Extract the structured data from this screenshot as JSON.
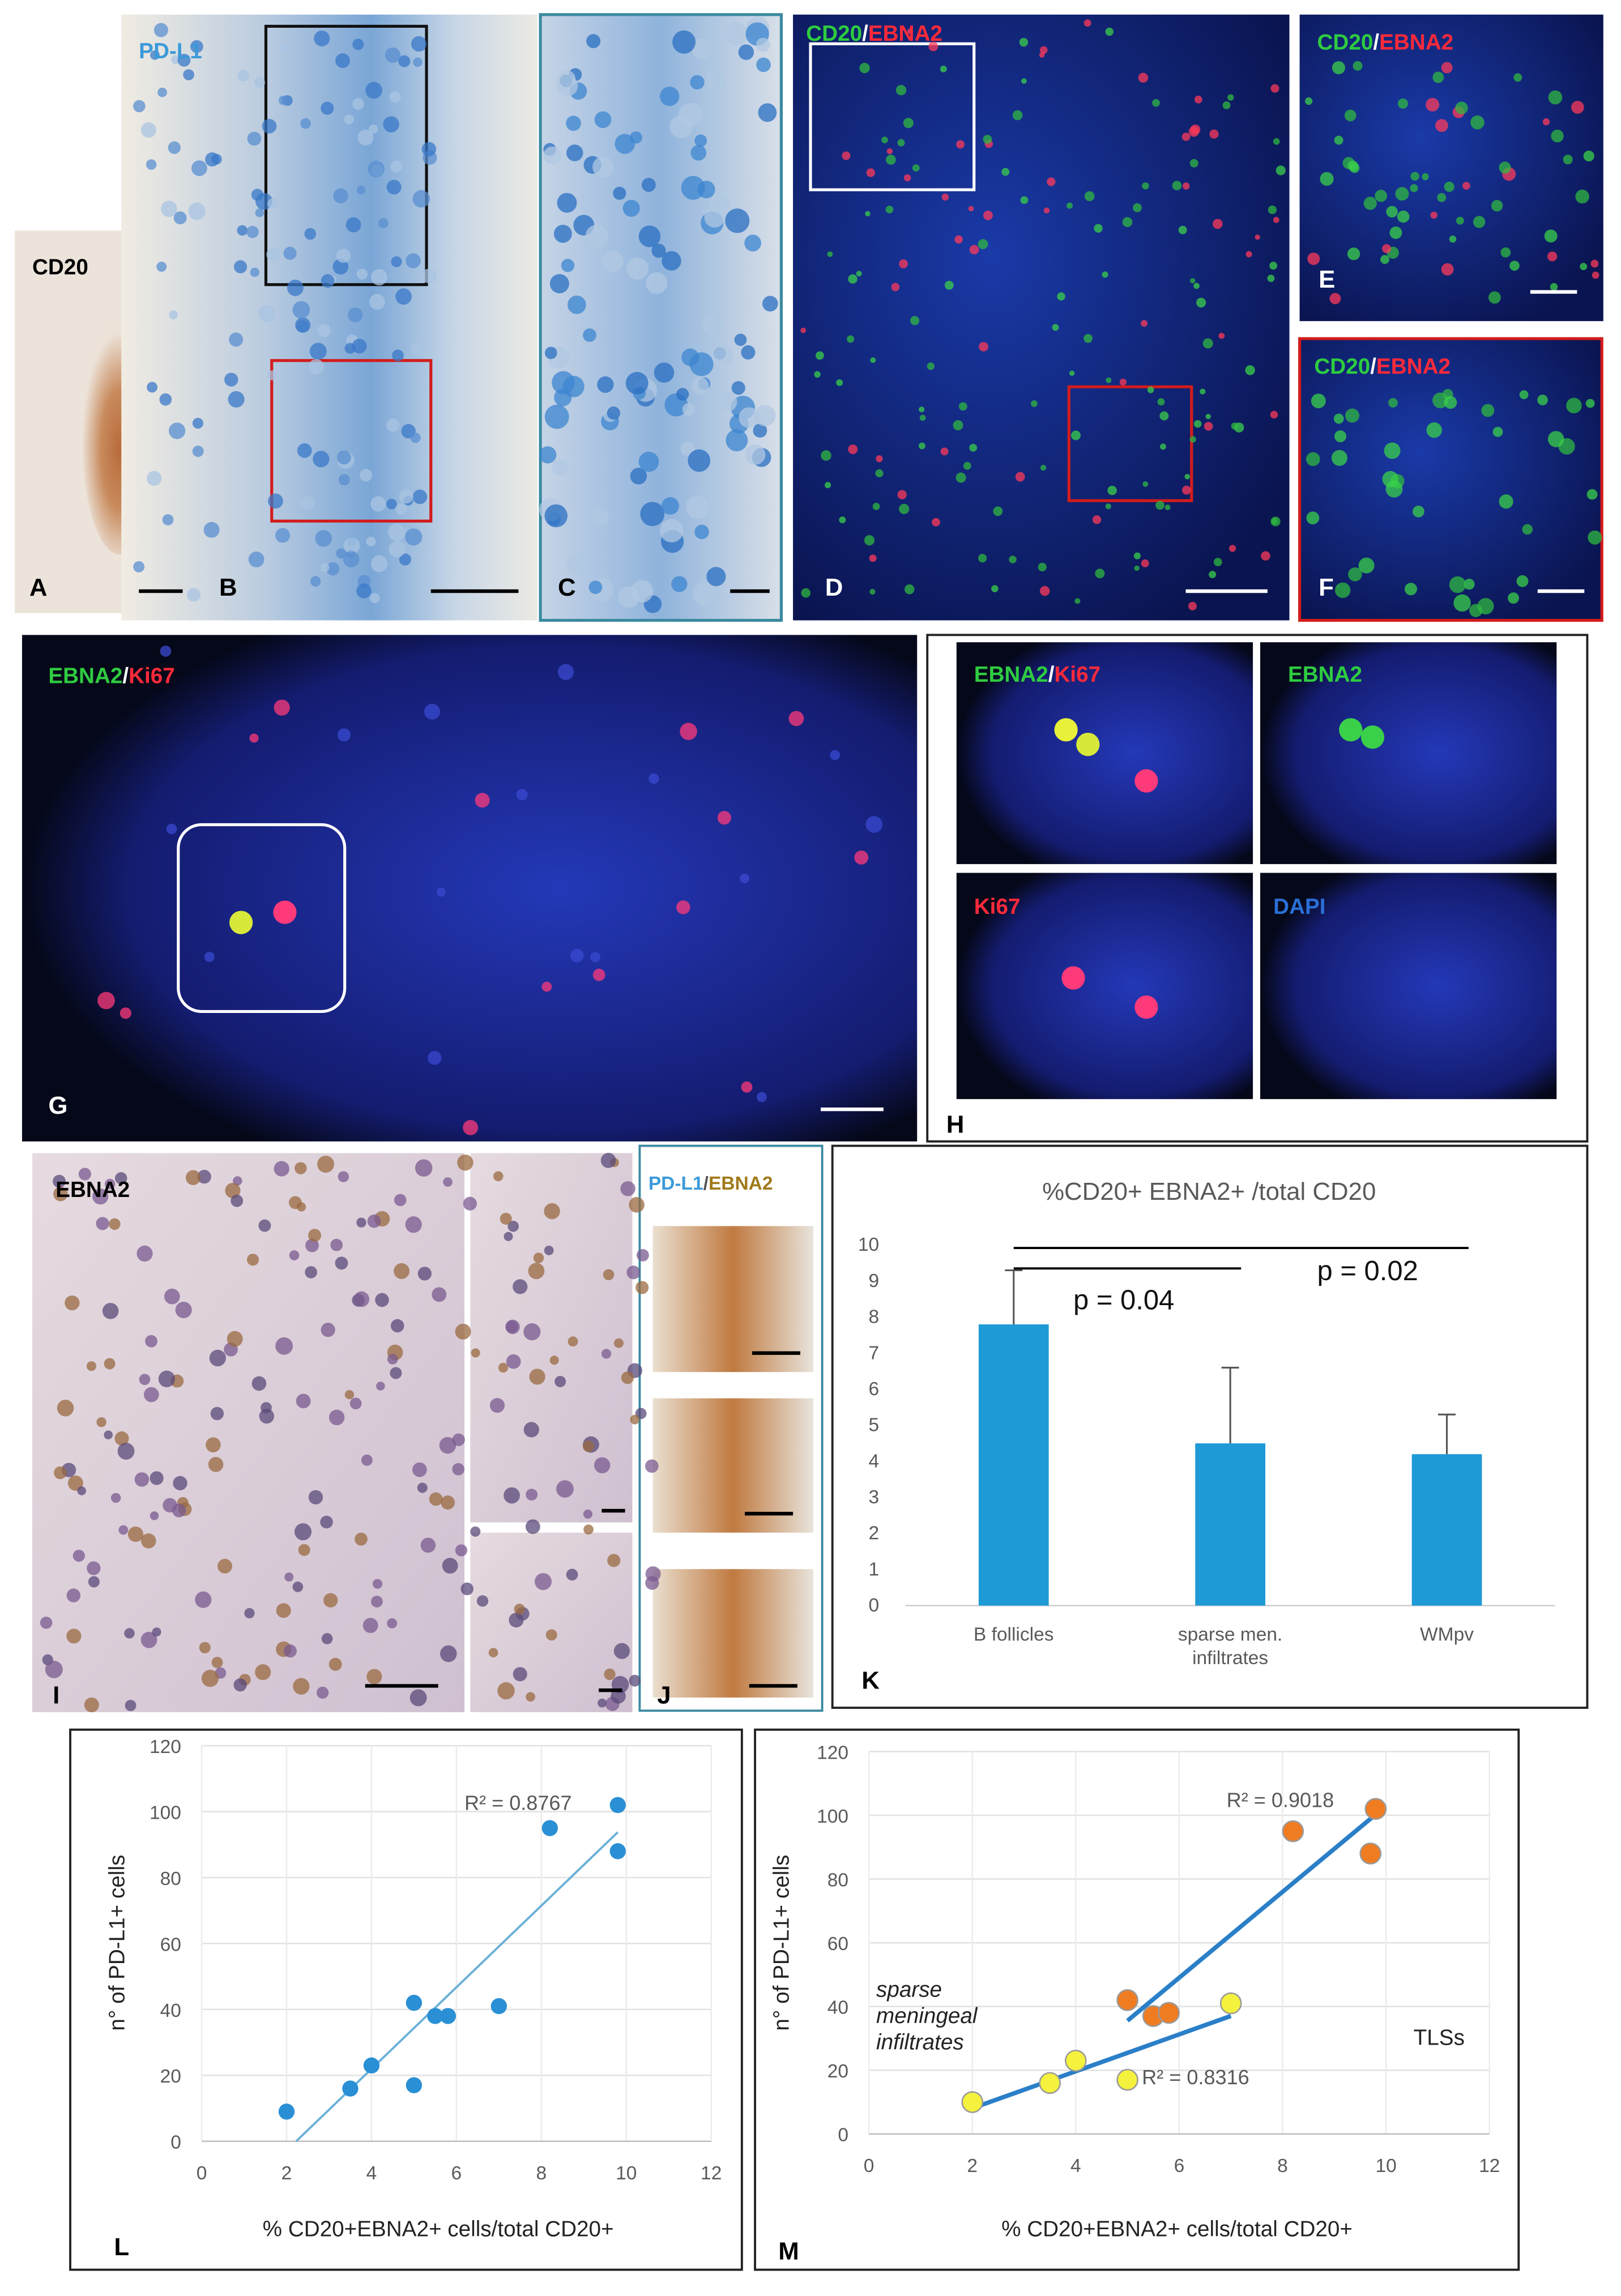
{
  "image_panels": [
    {
      "letter": "A",
      "stain": [
        "CD20"
      ]
    },
    {
      "letter": "B",
      "stain": [
        "PD-L1"
      ]
    },
    {
      "letter": "C"
    },
    {
      "letter": "D",
      "stain": [
        "CD20",
        "/",
        "EBNA2"
      ]
    },
    {
      "letter": "E",
      "stain": [
        "CD20",
        "/",
        "EBNA2"
      ]
    },
    {
      "letter": "F",
      "stain": [
        "CD20",
        "/",
        "EBNA2"
      ]
    },
    {
      "letter": "G",
      "stain": [
        "EBNA2",
        "/",
        "Ki67"
      ]
    },
    {
      "letter": "H",
      "subpanels": [
        [
          "EBNA2",
          "/",
          "Ki67"
        ],
        [
          "EBNA2"
        ],
        [
          "Ki67"
        ],
        [
          "DAPI"
        ]
      ]
    },
    {
      "letter": "I",
      "stain": [
        "EBNA2"
      ]
    },
    {
      "letter": "J",
      "stain": [
        "PD-L1",
        "/",
        "EBNA2"
      ]
    }
  ],
  "chart_data": [
    {
      "type": "bar",
      "panel_label": "K",
      "title": "%CD20+ EBNA2+ /total CD20",
      "categories": [
        "B follicles",
        "sparse men. infiltrates",
        "WMpv"
      ],
      "values": [
        7.8,
        4.5,
        4.2
      ],
      "errors": [
        1.5,
        2.1,
        1.1
      ],
      "color": "#1e9ad6",
      "ylim": [
        0,
        10
      ],
      "yticks": [
        0,
        1,
        2,
        3,
        4,
        5,
        6,
        7,
        8,
        9,
        10
      ],
      "grid": false,
      "annotations": [
        "p = 0.04",
        "p = 0.02"
      ]
    },
    {
      "type": "scatter",
      "panel_label": "L",
      "x": [
        2,
        3.5,
        4,
        5,
        5,
        5.5,
        5.8,
        7,
        8.2,
        9.8,
        9.8
      ],
      "values": [
        9,
        16,
        23,
        42,
        17,
        38,
        38,
        41,
        95,
        102,
        88
      ],
      "color": "#2a8fd4",
      "trendline": true,
      "trendline_color": "#6ab0d8",
      "xlim": [
        0,
        12
      ],
      "xticks": [
        0,
        2,
        4,
        6,
        8,
        10,
        12
      ],
      "ylim": [
        0,
        120
      ],
      "yticks": [
        0,
        20,
        40,
        60,
        80,
        100,
        120
      ],
      "grid": true,
      "xlabel": "% CD20+EBNA2+  cells/total CD20+",
      "ylabel": "n° of PD-L1+ cells",
      "annotations": [
        "R² = 0.8767"
      ]
    },
    {
      "type": "scatter",
      "panel_label": "M",
      "series": [
        {
          "name": "sparse meningeal infiltrates",
          "color": "#f4f23c",
          "x": [
            2,
            3.5,
            4,
            5,
            7
          ],
          "values": [
            10,
            16,
            23,
            17,
            41
          ]
        },
        {
          "name": "TLSs",
          "color": "#f07c22",
          "x": [
            5,
            5.5,
            5.8,
            8.2,
            9.8,
            9.7
          ],
          "values": [
            42,
            37,
            38,
            95,
            102,
            88
          ]
        }
      ],
      "trendline": true,
      "trendline_color": "#2a7fc8",
      "xlim": [
        0,
        12
      ],
      "xticks": [
        0,
        2,
        4,
        6,
        8,
        10,
        12
      ],
      "ylim": [
        0,
        120
      ],
      "yticks": [
        0,
        20,
        40,
        60,
        80,
        100,
        120
      ],
      "grid": true,
      "xlabel": "% CD20+EBNA2+  cells/total CD20+",
      "ylabel": "n° of PD-L1+ cells",
      "annotations": [
        "R² = 0.9018",
        "R² = 0.8316"
      ]
    }
  ]
}
